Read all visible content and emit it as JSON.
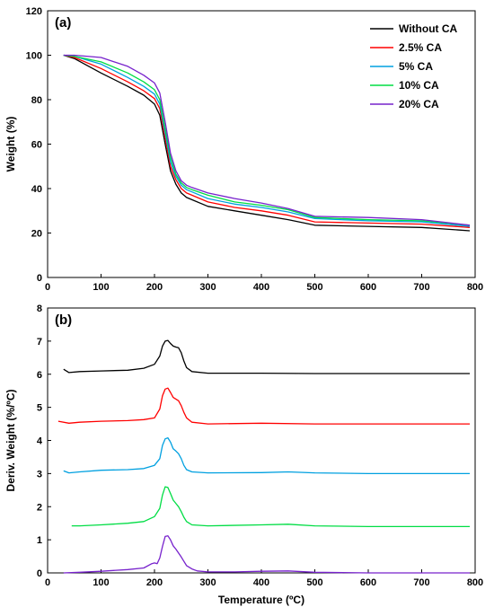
{
  "chart_data": [
    {
      "type": "line",
      "panel_label": "(a)",
      "xlabel": "",
      "ylabel": "Weight (%)",
      "xlim": [
        0,
        800
      ],
      "ylim": [
        0,
        120
      ],
      "xticks": [
        0,
        100,
        200,
        300,
        400,
        500,
        600,
        700,
        800
      ],
      "yticks": [
        0,
        20,
        40,
        60,
        80,
        100,
        120
      ],
      "grid": false,
      "legend_position": "top-right",
      "series": [
        {
          "name": "Without CA",
          "color": "#000000",
          "x": [
            30,
            50,
            100,
            150,
            180,
            200,
            210,
            220,
            230,
            240,
            250,
            260,
            270,
            300,
            350,
            400,
            450,
            500,
            600,
            700,
            790
          ],
          "y": [
            100,
            98.5,
            92,
            86,
            82,
            78,
            73,
            60,
            48,
            42,
            38,
            36,
            35,
            32,
            30,
            28,
            26,
            23.5,
            23,
            22.5,
            21
          ]
        },
        {
          "name": "2.5% CA",
          "color": "#ff0000",
          "x": [
            30,
            50,
            100,
            150,
            180,
            200,
            210,
            220,
            230,
            240,
            250,
            260,
            270,
            300,
            350,
            400,
            450,
            500,
            600,
            700,
            790
          ],
          "y": [
            100,
            99,
            94,
            88,
            84,
            80.5,
            76,
            63,
            50,
            44,
            40,
            38,
            37,
            34,
            31.5,
            30,
            28,
            25,
            24.5,
            24,
            22.5
          ]
        },
        {
          "name": "5% CA",
          "color": "#00a0e0",
          "x": [
            30,
            50,
            100,
            150,
            180,
            200,
            210,
            220,
            230,
            240,
            250,
            260,
            270,
            300,
            350,
            400,
            450,
            500,
            600,
            700,
            790
          ],
          "y": [
            100,
            99.5,
            96,
            90,
            86,
            82.5,
            78,
            65,
            52,
            45.5,
            41.5,
            39.5,
            38.5,
            35.5,
            33,
            31.5,
            29.5,
            26.5,
            25.5,
            25,
            23
          ]
        },
        {
          "name": "10% CA",
          "color": "#00dd44",
          "x": [
            30,
            50,
            100,
            150,
            180,
            200,
            210,
            220,
            230,
            240,
            250,
            260,
            270,
            300,
            350,
            400,
            450,
            500,
            600,
            700,
            790
          ],
          "y": [
            100,
            99.5,
            97,
            92,
            88,
            84.5,
            80,
            67,
            54,
            46.5,
            42.5,
            40.5,
            39.5,
            37,
            34,
            32.5,
            30.5,
            27,
            26,
            25.5,
            23.5
          ]
        },
        {
          "name": "20% CA",
          "color": "#7722cc",
          "x": [
            30,
            50,
            100,
            150,
            180,
            200,
            210,
            220,
            230,
            240,
            250,
            260,
            270,
            300,
            350,
            400,
            450,
            500,
            600,
            700,
            790
          ],
          "y": [
            100,
            100,
            99,
            95,
            91,
            87.5,
            83,
            70,
            56,
            48,
            43.5,
            41.5,
            40.5,
            38,
            35.5,
            33.5,
            31,
            27.5,
            27,
            26,
            23.5
          ]
        }
      ]
    },
    {
      "type": "line",
      "panel_label": "(b)",
      "xlabel": "Temperature (ºC)",
      "ylabel": "Deriv. Weight (%/ºC)",
      "xlim": [
        0,
        800
      ],
      "ylim": [
        0,
        8
      ],
      "xticks": [
        0,
        100,
        200,
        300,
        400,
        500,
        600,
        700,
        800
      ],
      "yticks": [
        0,
        1,
        2,
        3,
        4,
        5,
        6,
        7,
        8
      ],
      "grid": false,
      "series": [
        {
          "color": "#000000",
          "x": [
            30,
            40,
            60,
            100,
            150,
            180,
            200,
            210,
            215,
            220,
            225,
            230,
            235,
            240,
            245,
            250,
            255,
            260,
            270,
            300,
            400,
            500,
            600,
            700,
            790
          ],
          "y": [
            6.15,
            6.05,
            6.08,
            6.1,
            6.12,
            6.18,
            6.3,
            6.55,
            6.85,
            7.0,
            7.02,
            6.93,
            6.85,
            6.82,
            6.8,
            6.65,
            6.4,
            6.2,
            6.08,
            6.03,
            6.03,
            6.02,
            6.02,
            6.02,
            6.02
          ]
        },
        {
          "color": "#ff0000",
          "x": [
            20,
            40,
            60,
            100,
            150,
            180,
            200,
            210,
            215,
            220,
            225,
            230,
            235,
            240,
            245,
            250,
            255,
            260,
            270,
            300,
            400,
            500,
            600,
            700,
            790
          ],
          "y": [
            4.58,
            4.52,
            4.55,
            4.58,
            4.6,
            4.63,
            4.68,
            4.95,
            5.35,
            5.55,
            5.58,
            5.45,
            5.3,
            5.25,
            5.2,
            5.05,
            4.85,
            4.68,
            4.55,
            4.5,
            4.52,
            4.5,
            4.5,
            4.5,
            4.5
          ]
        },
        {
          "color": "#00a0e0",
          "x": [
            30,
            40,
            60,
            100,
            150,
            180,
            200,
            210,
            215,
            220,
            225,
            230,
            235,
            240,
            245,
            250,
            255,
            260,
            270,
            300,
            400,
            450,
            500,
            600,
            700,
            790
          ],
          "y": [
            3.08,
            3.02,
            3.05,
            3.1,
            3.12,
            3.15,
            3.25,
            3.45,
            3.85,
            4.05,
            4.08,
            3.95,
            3.75,
            3.68,
            3.6,
            3.45,
            3.25,
            3.12,
            3.05,
            3.02,
            3.03,
            3.05,
            3.02,
            3.0,
            3.0,
            3.0
          ]
        },
        {
          "color": "#00dd44",
          "x": [
            45,
            60,
            100,
            150,
            180,
            200,
            210,
            215,
            220,
            225,
            230,
            235,
            240,
            245,
            250,
            255,
            260,
            270,
            300,
            400,
            450,
            500,
            600,
            700,
            790
          ],
          "y": [
            1.42,
            1.42,
            1.45,
            1.5,
            1.55,
            1.7,
            1.95,
            2.35,
            2.6,
            2.58,
            2.4,
            2.2,
            2.1,
            2.0,
            1.85,
            1.68,
            1.55,
            1.45,
            1.42,
            1.45,
            1.47,
            1.42,
            1.4,
            1.4,
            1.4
          ]
        },
        {
          "color": "#7722cc",
          "x": [
            30,
            60,
            100,
            150,
            180,
            195,
            200,
            205,
            210,
            215,
            220,
            225,
            230,
            235,
            240,
            245,
            250,
            255,
            260,
            270,
            280,
            300,
            350,
            400,
            450,
            500,
            600,
            700,
            790
          ],
          "y": [
            0.0,
            0.02,
            0.05,
            0.1,
            0.15,
            0.28,
            0.3,
            0.28,
            0.45,
            0.8,
            1.1,
            1.12,
            1.0,
            0.82,
            0.72,
            0.6,
            0.48,
            0.35,
            0.22,
            0.12,
            0.06,
            0.03,
            0.03,
            0.05,
            0.06,
            0.02,
            0.0,
            0.0,
            0.0
          ]
        }
      ]
    }
  ]
}
